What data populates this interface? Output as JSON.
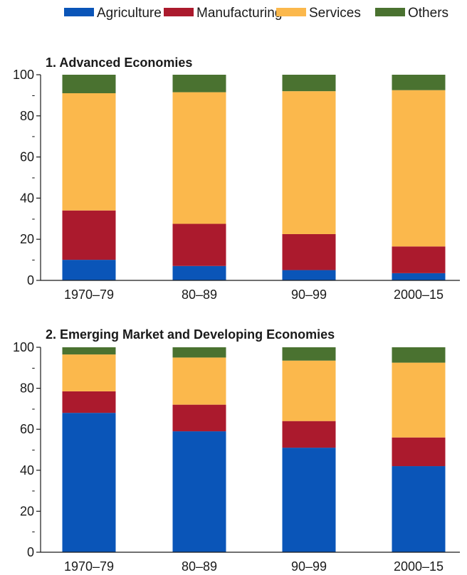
{
  "chart_data": {
    "type": "bar",
    "stacked": true,
    "legend": {
      "placement": "top",
      "entries": [
        {
          "name": "Agriculture",
          "color": "#0a55b8"
        },
        {
          "name": "Manufacturing",
          "color": "#ab1a2d"
        },
        {
          "name": "Services",
          "color": "#fbb84c"
        },
        {
          "name": "Others",
          "color": "#4a7230"
        }
      ]
    },
    "grid": false,
    "panels": [
      {
        "title": "1. Advanced Economies",
        "categories": [
          "1970–79",
          "80–89",
          "90–99",
          "2000–15"
        ],
        "ylim": [
          0,
          100
        ],
        "yticks": [
          "0",
          "20",
          "40",
          "60",
          "80",
          "100"
        ],
        "minor_tick_label": "-",
        "series": [
          {
            "name": "Agriculture",
            "values": [
              10,
              7,
              5,
              3.5
            ]
          },
          {
            "name": "Manufacturing",
            "values": [
              24,
              20.5,
              17.5,
              13
            ]
          },
          {
            "name": "Services",
            "values": [
              57,
              64,
              69.5,
              76
            ]
          },
          {
            "name": "Others",
            "values": [
              9,
              8.5,
              8,
              7.5
            ]
          }
        ]
      },
      {
        "title": "2. Emerging Market and Developing Economies",
        "categories": [
          "1970–79",
          "80–89",
          "90–99",
          "2000–15"
        ],
        "ylim": [
          0,
          100
        ],
        "yticks": [
          "0",
          "20",
          "40",
          "60",
          "80",
          "100"
        ],
        "minor_tick_label": "-",
        "series": [
          {
            "name": "Agriculture",
            "values": [
              68,
              59,
              51,
              42
            ]
          },
          {
            "name": "Manufacturing",
            "values": [
              10.5,
              13,
              13,
              14
            ]
          },
          {
            "name": "Services",
            "values": [
              18,
              23,
              29.5,
              36.5
            ]
          },
          {
            "name": "Others",
            "values": [
              3.5,
              5,
              6.5,
              7.5
            ]
          }
        ]
      }
    ]
  }
}
